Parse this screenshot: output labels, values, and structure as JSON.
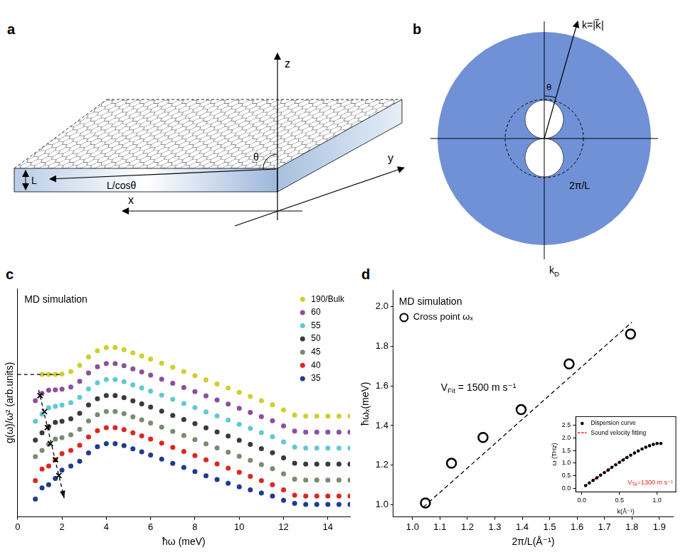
{
  "diagrams": [
    {
      "panel_label": "a",
      "labels": {
        "z_axis": "z",
        "x_axis": "x",
        "y_axis": "y",
        "thickness": "L",
        "path": "L/cosθ",
        "angle": "θ"
      }
    },
    {
      "panel_label": "b",
      "labels": {
        "wavevector": "k=|k⃗|",
        "angle": "θ",
        "cutoff": "2π/L",
        "debye": [
          "k",
          {
            "sub": "D"
          }
        ]
      }
    }
  ],
  "chart_data": [
    {
      "panel_label": "c",
      "type": "scatter",
      "annotations": [
        {
          "text": "MD simulation"
        }
      ],
      "x_label": "ħω (meV)",
      "y_label": "g(ω)/ω² (arb.units)",
      "xlim": [
        0,
        15
      ],
      "xticks": [
        0,
        2,
        4,
        6,
        8,
        10,
        12,
        14
      ],
      "ylim": [
        0,
        11
      ],
      "tick_labels": "x",
      "grid": false,
      "legend": "upper right",
      "x": [
        0.8,
        1.1,
        1.4,
        1.7,
        2.0,
        2.4,
        2.8,
        3.2,
        3.6,
        4.0,
        4.4,
        4.8,
        5.2,
        5.6,
        6.0,
        6.5,
        7.0,
        7.5,
        8.0,
        8.5,
        9.0,
        9.5,
        10.0,
        10.5,
        11.0,
        11.5,
        12.0,
        12.5,
        13.0,
        13.5,
        14.0,
        14.5,
        15.0
      ],
      "series": [
        {
          "name": "190/Bulk",
          "color": "#cfcf2e",
          "marker": "circle",
          "values": [
            null,
            6.86,
            6.86,
            6.86,
            6.88,
            7.0,
            7.3,
            7.7,
            8.0,
            8.15,
            8.15,
            8.05,
            7.9,
            7.75,
            7.6,
            7.4,
            7.2,
            7.0,
            6.8,
            6.6,
            6.4,
            6.2,
            6.0,
            5.8,
            5.6,
            5.4,
            5.15,
            4.9,
            4.85,
            4.85,
            4.85,
            4.85,
            4.85
          ]
        },
        {
          "name": "60",
          "color": "#8b4f9e",
          "marker": "circle",
          "values": [
            5.6,
            5.95,
            6.1,
            6.12,
            6.15,
            6.25,
            6.53,
            6.93,
            7.23,
            7.38,
            7.38,
            7.28,
            7.13,
            6.98,
            6.83,
            6.63,
            6.43,
            6.23,
            6.03,
            5.83,
            5.63,
            5.43,
            5.23,
            5.03,
            4.83,
            4.63,
            4.38,
            4.13,
            4.08,
            4.08,
            4.08,
            4.08,
            4.08
          ]
        },
        {
          "name": "55",
          "color": "#5fc9d3",
          "marker": "circle",
          "values": [
            4.6,
            4.95,
            5.25,
            5.32,
            5.38,
            5.5,
            5.76,
            6.16,
            6.46,
            6.61,
            6.61,
            6.51,
            6.36,
            6.21,
            6.06,
            5.86,
            5.66,
            5.46,
            5.26,
            5.06,
            4.86,
            4.66,
            4.46,
            4.26,
            4.06,
            3.86,
            3.61,
            3.36,
            3.31,
            3.31,
            3.31,
            3.31,
            3.31
          ]
        },
        {
          "name": "50",
          "color": "#3a3a3a",
          "marker": "circle",
          "values": [
            3.7,
            4.05,
            4.35,
            4.55,
            4.6,
            4.72,
            4.99,
            5.39,
            5.69,
            5.84,
            5.84,
            5.74,
            5.59,
            5.44,
            5.29,
            5.09,
            4.89,
            4.69,
            4.49,
            4.29,
            4.09,
            3.89,
            3.69,
            3.49,
            3.29,
            3.09,
            2.84,
            2.59,
            2.54,
            2.54,
            2.54,
            2.54,
            2.54
          ]
        },
        {
          "name": "45",
          "color": "#788c6e",
          "marker": "circle",
          "values": [
            2.9,
            3.2,
            3.5,
            3.75,
            3.82,
            3.95,
            4.22,
            4.62,
            4.92,
            5.07,
            5.07,
            4.97,
            4.82,
            4.67,
            4.52,
            4.32,
            4.12,
            3.92,
            3.72,
            3.52,
            3.32,
            3.12,
            2.92,
            2.72,
            2.52,
            2.32,
            2.07,
            1.82,
            1.77,
            1.77,
            1.77,
            1.77,
            1.77
          ]
        },
        {
          "name": "40",
          "color": "#e0261c",
          "marker": "circle",
          "values": [
            1.75,
            2.3,
            2.45,
            2.75,
            3.05,
            3.2,
            3.45,
            3.85,
            4.15,
            4.3,
            4.3,
            4.2,
            4.05,
            3.9,
            3.75,
            3.55,
            3.35,
            3.15,
            2.95,
            2.75,
            2.55,
            2.35,
            2.15,
            1.95,
            1.75,
            1.55,
            1.3,
            1.05,
            1.0,
            1.0,
            1.0,
            1.0,
            1.0
          ]
        },
        {
          "name": "35",
          "color": "#1f3b8f",
          "marker": "circle",
          "values": [
            0.86,
            1.4,
            1.55,
            1.85,
            2.25,
            2.45,
            2.68,
            3.08,
            3.38,
            3.53,
            3.53,
            3.43,
            3.28,
            3.13,
            2.98,
            2.78,
            2.58,
            2.38,
            2.18,
            1.98,
            1.8,
            1.62,
            1.45,
            1.3,
            1.15,
            1.0,
            0.8,
            0.65,
            0.6,
            0.6,
            0.6,
            0.6,
            0.6
          ]
        },
        {
          "type": "line",
          "color": "#000000",
          "line_style": "dashed",
          "marker": "none",
          "x": [
            0,
            1.9
          ],
          "values": [
            6.86,
            6.86
          ]
        },
        {
          "color": "#000000",
          "marker": "cross",
          "x": [
            1.01,
            1.21,
            1.34,
            1.48,
            1.71,
            1.86
          ],
          "values": [
            5.84,
            5.07,
            4.3,
            3.53,
            2.75,
            1.99
          ]
        },
        {
          "type": "line",
          "color": "#000000",
          "line_style": "dashed",
          "marker": "arrow",
          "x": [
            0.95,
            2.1
          ],
          "values": [
            6.11,
            0.9
          ]
        }
      ]
    },
    {
      "panel_label": "d",
      "type": "scatter",
      "annotations": [
        {
          "text": "MD simulation"
        },
        {
          "text": [
            "V",
            {
              "sub": "Fit"
            },
            " = 1500 m s⁻¹"
          ]
        }
      ],
      "x_label": "2π/L(Å⁻¹)",
      "y_label": "ħωₓ(meV)",
      "xlim": [
        0.93,
        1.95
      ],
      "xticks": [
        {
          "value": 1,
          "label": "1.0"
        },
        1.1,
        1.2,
        1.3,
        1.4,
        1.5,
        1.6,
        1.7,
        1.8,
        1.9
      ],
      "ylim": [
        0.94,
        2.08
      ],
      "yticks": [
        {
          "value": 1,
          "label": "1.0"
        },
        1.2,
        1.4,
        1.6,
        1.8,
        {
          "value": 2,
          "label": "2.0"
        }
      ],
      "grid": false,
      "legend": "upper left",
      "series": [
        {
          "name": "Cross point ωₓ",
          "color": "#000000",
          "marker": "open_circle",
          "x": [
            1.047,
            1.142,
            1.257,
            1.396,
            1.571,
            1.795
          ],
          "values": [
            1.01,
            1.21,
            1.34,
            1.48,
            1.71,
            1.86
          ]
        },
        {
          "type": "line",
          "color": "#000000",
          "line_style": "dashed",
          "marker": "none",
          "x": [
            1.04,
            1.8
          ],
          "values": [
            0.99,
            1.92
          ]
        }
      ]
    },
    {
      "type": "scatter",
      "annotations": [
        {
          "text": [
            "V",
            {
              "sub": "TA"
            },
            "=1300 m s⁻¹"
          ],
          "color": "#e0261c"
        }
      ],
      "x_label": "k(Å⁻¹)",
      "y_label": "ω (THz)",
      "xlim": [
        -0.08,
        1.25
      ],
      "xticks": [
        {
          "value": 0,
          "label": "0.0"
        },
        {
          "value": 0.5,
          "label": "0.5"
        },
        {
          "value": 1,
          "label": "1.0"
        }
      ],
      "ylim": [
        -0.15,
        2.85
      ],
      "yticks": [
        {
          "value": 0,
          "label": "0.0"
        },
        {
          "value": 0.5,
          "label": "0.5"
        },
        {
          "value": 1,
          "label": "1.0"
        },
        {
          "value": 1.5,
          "label": "1.5"
        },
        {
          "value": 2,
          "label": "2.0"
        },
        {
          "value": 2.5,
          "label": "2.5"
        }
      ],
      "grid": false,
      "legend": "upper left",
      "series": [
        {
          "name": "Dispersion curve",
          "color": "#000000",
          "marker": "circle",
          "x": [
            0.05,
            0.1,
            0.15,
            0.2,
            0.25,
            0.3,
            0.35,
            0.4,
            0.45,
            0.5,
            0.55,
            0.6,
            0.65,
            0.7,
            0.75,
            0.8,
            0.85,
            0.9,
            0.95,
            1.0,
            1.05
          ],
          "values": [
            0.1,
            0.21,
            0.31,
            0.41,
            0.52,
            0.62,
            0.72,
            0.83,
            0.93,
            1.03,
            1.12,
            1.22,
            1.31,
            1.4,
            1.48,
            1.56,
            1.63,
            1.69,
            1.74,
            1.78,
            1.78
          ]
        },
        {
          "name": "Sound velocity fitting",
          "type": "line",
          "color": "#e0261c",
          "line_style": "dashed",
          "marker": "none",
          "x": [
            0.05,
            0.65
          ],
          "values": [
            0.1,
            1.35
          ]
        }
      ]
    }
  ]
}
